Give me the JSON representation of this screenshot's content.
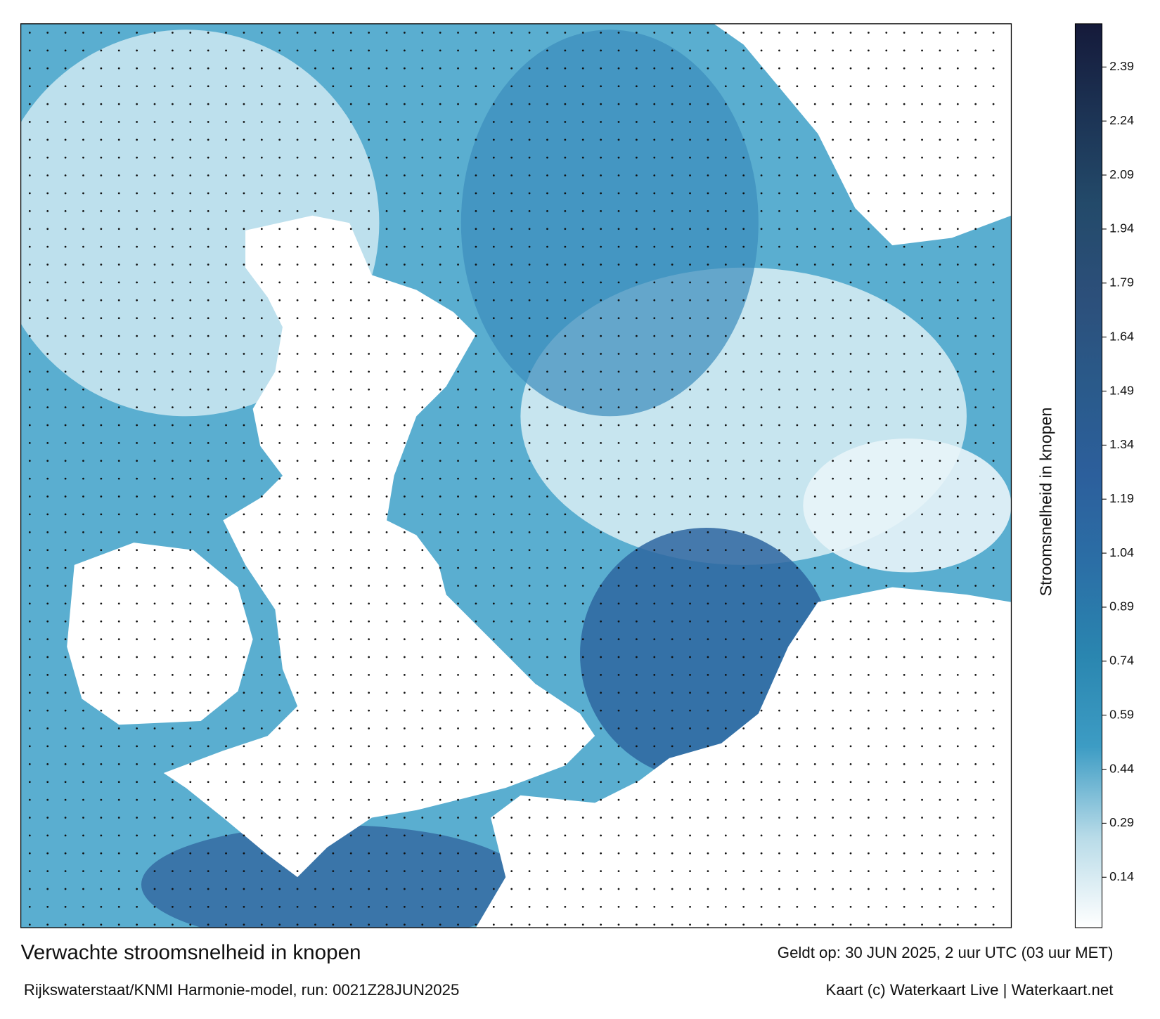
{
  "colorbar": {
    "label": "Stroomsnelheid in knopen",
    "lim": [
      0,
      2.51
    ],
    "ticks": [
      0.14,
      0.29,
      0.44,
      0.59,
      0.74,
      0.89,
      1.04,
      1.19,
      1.34,
      1.49,
      1.64,
      1.79,
      1.94,
      2.09,
      2.24,
      2.39
    ],
    "colors": [
      "#ffffff",
      "#b8dbe8",
      "#3d9cc4",
      "#2a86b0",
      "#2b6fa6",
      "#2c5f9c",
      "#2a5a8a",
      "#2c4f7a",
      "#234a6a",
      "#1c3354",
      "#151a3a"
    ]
  },
  "caption": {
    "title": "Verwachte stroomsnelheid in knopen",
    "valid": "Geldt op: 30 JUN 2025, 2 uur UTC (03 uur MET)",
    "model": "Rijkswaterstaat/KNMI Harmonie-model, run: 0021Z28JUN2025",
    "credit": "Kaart (c) Waterkaart Live | Waterkaart.net"
  }
}
